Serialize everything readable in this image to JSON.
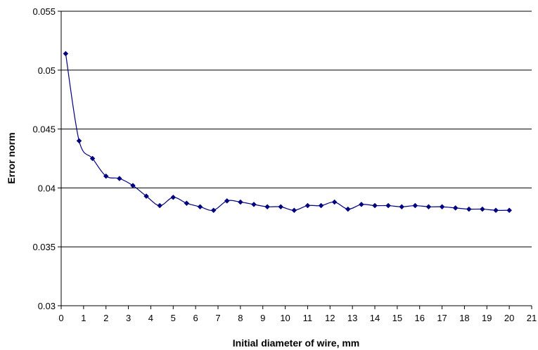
{
  "chart_data": {
    "type": "line",
    "title": "",
    "xlabel": "Initial diameter of wire, mm",
    "ylabel": "Error norm",
    "xlim": [
      0,
      21
    ],
    "ylim": [
      0.03,
      0.055
    ],
    "x_ticks": [
      "0",
      "1",
      "2",
      "3",
      "4",
      "5",
      "6",
      "7",
      "8",
      "9",
      "10",
      "11",
      "12",
      "13",
      "14",
      "15",
      "16",
      "17",
      "18",
      "19",
      "20",
      "21"
    ],
    "y_ticks": [
      "0.03",
      "0.035",
      "0.04",
      "0.045",
      "0.05",
      "0.055"
    ],
    "grid": "horizontal",
    "legend": "none",
    "line_color": "#000080",
    "marker": "diamond",
    "series": [
      {
        "x": [
          0.2,
          0.8,
          1.4,
          2.0,
          2.6,
          3.2,
          3.8,
          4.4,
          5.0,
          5.6,
          6.2,
          6.8,
          7.4,
          8.0,
          8.6,
          9.2,
          9.8,
          10.4,
          11.0,
          11.6,
          12.2,
          12.8,
          13.4,
          14.0,
          14.6,
          15.2,
          15.8,
          16.4,
          17.0,
          17.6,
          18.2,
          18.8,
          19.4,
          20.0
        ],
        "y": [
          0.0514,
          0.044,
          0.0425,
          0.041,
          0.0408,
          0.0402,
          0.0393,
          0.0385,
          0.0392,
          0.0387,
          0.0384,
          0.0381,
          0.0389,
          0.0388,
          0.0386,
          0.0384,
          0.0384,
          0.0381,
          0.0385,
          0.0385,
          0.0388,
          0.0382,
          0.0386,
          0.0385,
          0.0385,
          0.0384,
          0.0385,
          0.0384,
          0.0384,
          0.0383,
          0.0382,
          0.0382,
          0.0381,
          0.0381
        ]
      }
    ]
  }
}
